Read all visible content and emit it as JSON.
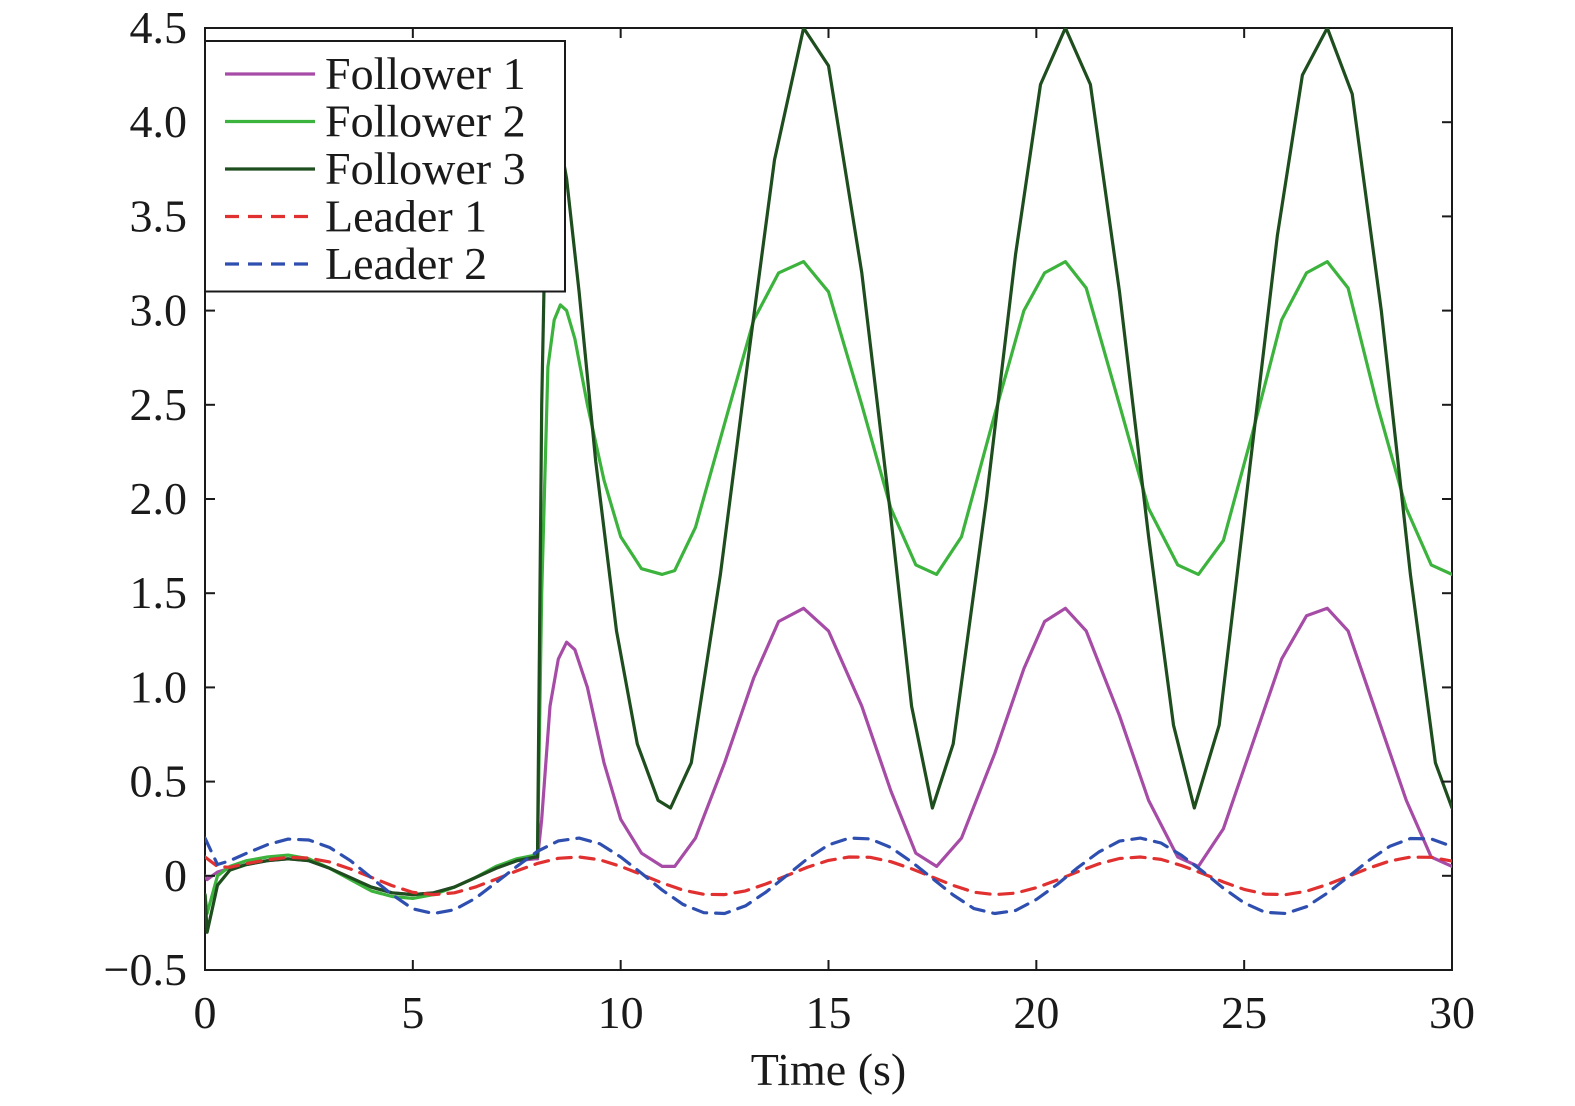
{
  "chart_data": {
    "type": "line",
    "title": "",
    "xlabel": "Time (s)",
    "ylabel": "",
    "xlim": [
      0,
      30
    ],
    "ylim": [
      -0.5,
      4.5
    ],
    "x_ticks": [
      0,
      5,
      10,
      15,
      20,
      25,
      30
    ],
    "x_tick_labels": [
      "0",
      "5",
      "10",
      "15",
      "20",
      "25",
      "30"
    ],
    "y_ticks": [
      -0.5,
      0,
      0.5,
      1.0,
      1.5,
      2.0,
      2.5,
      3.0,
      3.5,
      4.0,
      4.5
    ],
    "y_tick_labels": [
      "−0.5",
      "0",
      "0.5",
      "1.0",
      "1.5",
      "2.0",
      "2.5",
      "3.0",
      "3.5",
      "4.0",
      "4.5"
    ],
    "grid": false,
    "legend_position": "top-left",
    "series": [
      {
        "name": "Follower 1",
        "color": "#a64ca6",
        "dash": "solid",
        "x": [
          0,
          0.05,
          0.3,
          0.6,
          1.0,
          1.5,
          2.0,
          2.5,
          3.0,
          3.5,
          4.0,
          4.5,
          5.0,
          5.5,
          6.0,
          6.5,
          7.0,
          7.5,
          7.95,
          8.0,
          8.1,
          8.3,
          8.5,
          8.7,
          8.9,
          9.2,
          9.6,
          10.0,
          10.5,
          11.0,
          11.3,
          11.8,
          12.5,
          13.2,
          13.8,
          14.4,
          15.0,
          15.8,
          16.5,
          17.1,
          17.6,
          18.2,
          19.0,
          19.7,
          20.2,
          20.7,
          21.2,
          22.0,
          22.7,
          23.4,
          23.9,
          24.5,
          25.2,
          25.9,
          26.5,
          27.0,
          27.5,
          28.2,
          28.9,
          29.5,
          30.0
        ],
        "y": [
          0,
          -0.02,
          0.02,
          0.04,
          0.06,
          0.08,
          0.09,
          0.08,
          0.04,
          -0.01,
          -0.06,
          -0.09,
          -0.1,
          -0.09,
          -0.06,
          -0.01,
          0.04,
          0.08,
          0.09,
          0.09,
          0.3,
          0.9,
          1.15,
          1.24,
          1.2,
          1.0,
          0.6,
          0.3,
          0.12,
          0.05,
          0.05,
          0.2,
          0.6,
          1.05,
          1.35,
          1.42,
          1.3,
          0.9,
          0.45,
          0.12,
          0.05,
          0.2,
          0.65,
          1.1,
          1.35,
          1.42,
          1.3,
          0.85,
          0.4,
          0.1,
          0.05,
          0.25,
          0.7,
          1.15,
          1.38,
          1.42,
          1.3,
          0.85,
          0.4,
          0.1,
          0.05
        ]
      },
      {
        "name": "Follower 2",
        "color": "#3cb33c",
        "dash": "solid",
        "x": [
          0,
          0.05,
          0.3,
          0.6,
          1.0,
          1.5,
          2.0,
          2.5,
          3.0,
          3.5,
          4.0,
          4.5,
          5.0,
          5.5,
          6.0,
          6.5,
          7.0,
          7.5,
          7.95,
          8.0,
          8.1,
          8.25,
          8.4,
          8.55,
          8.7,
          8.9,
          9.2,
          9.6,
          10.0,
          10.5,
          11.0,
          11.3,
          11.8,
          12.5,
          13.2,
          13.8,
          14.4,
          15.0,
          15.8,
          16.5,
          17.1,
          17.6,
          18.2,
          19.0,
          19.7,
          20.2,
          20.7,
          21.2,
          22.0,
          22.7,
          23.4,
          23.9,
          24.5,
          25.2,
          25.9,
          26.5,
          27.0,
          27.5,
          28.2,
          28.9,
          29.5,
          30.0
        ],
        "y": [
          -0.1,
          -0.2,
          0.0,
          0.05,
          0.08,
          0.1,
          0.11,
          0.09,
          0.04,
          -0.02,
          -0.08,
          -0.11,
          -0.12,
          -0.1,
          -0.06,
          -0.01,
          0.05,
          0.09,
          0.11,
          0.11,
          1.5,
          2.7,
          2.95,
          3.03,
          3.0,
          2.85,
          2.5,
          2.1,
          1.8,
          1.63,
          1.6,
          1.62,
          1.85,
          2.4,
          2.95,
          3.2,
          3.26,
          3.1,
          2.5,
          1.95,
          1.65,
          1.6,
          1.8,
          2.45,
          3.0,
          3.2,
          3.26,
          3.12,
          2.5,
          1.95,
          1.65,
          1.6,
          1.78,
          2.35,
          2.95,
          3.2,
          3.26,
          3.12,
          2.5,
          1.95,
          1.65,
          1.6
        ]
      },
      {
        "name": "Follower 3",
        "color": "#1e4d1e",
        "dash": "solid",
        "x": [
          0,
          0.05,
          0.3,
          0.6,
          1.0,
          1.5,
          2.0,
          2.5,
          3.0,
          3.5,
          4.0,
          4.5,
          5.0,
          5.5,
          6.0,
          6.5,
          7.0,
          7.5,
          7.95,
          8.0,
          8.1,
          8.2,
          8.35,
          8.5,
          8.7,
          9.0,
          9.4,
          9.9,
          10.4,
          10.9,
          11.2,
          11.7,
          12.4,
          13.1,
          13.7,
          14.4,
          15.0,
          15.8,
          16.5,
          17.0,
          17.5,
          18.0,
          18.8,
          19.5,
          20.1,
          20.7,
          21.3,
          22.0,
          22.7,
          23.3,
          23.8,
          24.4,
          25.1,
          25.8,
          26.4,
          27.0,
          27.6,
          28.3,
          29.0,
          29.6,
          30.0
        ],
        "y": [
          -0.1,
          -0.3,
          -0.05,
          0.03,
          0.06,
          0.08,
          0.09,
          0.08,
          0.04,
          -0.01,
          -0.06,
          -0.09,
          -0.1,
          -0.09,
          -0.06,
          -0.01,
          0.04,
          0.08,
          0.1,
          0.1,
          2.5,
          3.6,
          4.0,
          3.95,
          3.7,
          3.1,
          2.2,
          1.3,
          0.7,
          0.4,
          0.36,
          0.6,
          1.6,
          2.8,
          3.8,
          4.5,
          4.3,
          3.2,
          1.9,
          0.9,
          0.36,
          0.7,
          2.0,
          3.3,
          4.2,
          4.5,
          4.2,
          3.1,
          1.8,
          0.8,
          0.36,
          0.8,
          2.1,
          3.4,
          4.25,
          4.5,
          4.15,
          3.0,
          1.6,
          0.6,
          0.36
        ]
      },
      {
        "name": "Leader 1",
        "color": "#e03030",
        "dash": "dashed",
        "x": [
          0,
          0.3,
          0.6,
          1.0,
          1.5,
          2.0,
          2.5,
          3.0,
          3.5,
          4.0,
          4.5,
          5.0,
          5.5,
          6.0,
          6.5,
          7.0,
          7.5,
          8.0,
          8.5,
          9.0,
          9.5,
          10.0,
          10.5,
          11.0,
          11.5,
          12.0,
          12.5,
          13.0,
          13.5,
          14.0,
          14.5,
          15.0,
          15.5,
          16.0,
          16.5,
          17.0,
          17.5,
          18.0,
          18.5,
          19.0,
          19.5,
          20.0,
          20.5,
          21.0,
          21.5,
          22.0,
          22.5,
          23.0,
          23.5,
          24.0,
          24.5,
          25.0,
          25.5,
          26.0,
          26.5,
          27.0,
          27.5,
          28.0,
          28.5,
          29.0,
          29.5,
          30.0
        ],
        "y": [
          0.1,
          0.05,
          0.045,
          0.065,
          0.085,
          0.098,
          0.094,
          0.073,
          0.036,
          -0.008,
          -0.052,
          -0.088,
          -0.1,
          -0.09,
          -0.06,
          -0.018,
          0.026,
          0.066,
          0.093,
          0.1,
          0.085,
          0.05,
          0.007,
          -0.038,
          -0.076,
          -0.098,
          -0.1,
          -0.08,
          -0.043,
          0.001,
          0.046,
          0.082,
          0.1,
          0.098,
          0.075,
          0.037,
          -0.007,
          -0.051,
          -0.087,
          -0.1,
          -0.092,
          -0.063,
          -0.023,
          0.022,
          0.063,
          0.092,
          0.1,
          0.087,
          0.054,
          0.012,
          -0.033,
          -0.072,
          -0.097,
          -0.1,
          -0.082,
          -0.046,
          -0.003,
          0.041,
          0.078,
          0.099,
          0.098,
          0.078
        ]
      },
      {
        "name": "Leader 2",
        "color": "#2f4fb0",
        "dash": "dashed",
        "x": [
          0,
          0.3,
          0.6,
          1.0,
          1.5,
          2.0,
          2.5,
          3.0,
          3.5,
          4.0,
          4.5,
          5.0,
          5.5,
          6.0,
          6.5,
          7.0,
          7.5,
          8.0,
          8.5,
          9.0,
          9.5,
          10.0,
          10.5,
          11.0,
          11.5,
          12.0,
          12.5,
          13.0,
          13.5,
          14.0,
          14.5,
          15.0,
          15.5,
          16.0,
          16.5,
          17.0,
          17.5,
          18.0,
          18.5,
          19.0,
          19.5,
          20.0,
          20.5,
          21.0,
          21.5,
          22.0,
          22.5,
          23.0,
          23.5,
          24.0,
          24.5,
          25.0,
          25.5,
          26.0,
          26.5,
          27.0,
          27.5,
          28.0,
          28.5,
          29.0,
          29.5,
          30.0
        ],
        "y": [
          0.2,
          0.06,
          0.08,
          0.12,
          0.165,
          0.195,
          0.19,
          0.15,
          0.08,
          -0.01,
          -0.1,
          -0.175,
          -0.2,
          -0.18,
          -0.12,
          -0.036,
          0.05,
          0.13,
          0.185,
          0.2,
          0.17,
          0.1,
          0.014,
          -0.076,
          -0.152,
          -0.196,
          -0.2,
          -0.16,
          -0.086,
          0.002,
          0.092,
          0.164,
          0.2,
          0.196,
          0.15,
          0.074,
          -0.014,
          -0.102,
          -0.174,
          -0.2,
          -0.184,
          -0.126,
          -0.046,
          0.044,
          0.126,
          0.184,
          0.2,
          0.174,
          0.108,
          0.024,
          -0.066,
          -0.144,
          -0.194,
          -0.2,
          -0.164,
          -0.092,
          -0.006,
          0.082,
          0.156,
          0.198,
          0.196,
          0.156
        ]
      }
    ]
  }
}
